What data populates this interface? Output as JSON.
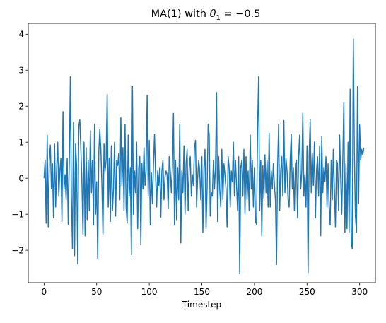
{
  "chart_data": {
    "type": "line",
    "title": "MA(1) with θ₁ = −0.5",
    "title_parts": {
      "prefix": "MA(1) with ",
      "symbol": "θ",
      "subscript": "1",
      "suffix": " = −0.5"
    },
    "xlabel": "Timestep",
    "ylabel": "",
    "xlim": [
      -15,
      315
    ],
    "ylim": [
      -2.9,
      4.3
    ],
    "x_ticks": [
      0,
      50,
      100,
      150,
      200,
      250,
      300
    ],
    "y_ticks": [
      -2,
      -1,
      0,
      1,
      2,
      3,
      4
    ],
    "y_tick_labels": [
      "−2",
      "−1",
      "0",
      "1",
      "2",
      "3",
      "4"
    ],
    "grid": false,
    "legend": "none",
    "series": [
      {
        "color": "#1f77b4",
        "x_start": 0,
        "x_step": 1,
        "values": [
          0.0,
          0.5,
          -1.25,
          1.2,
          -1.35,
          0.5,
          0.92,
          -0.3,
          0.4,
          -1.1,
          0.95,
          -0.8,
          0.3,
          1.0,
          -0.5,
          0.2,
          0.55,
          -1.2,
          1.85,
          -0.3,
          0.1,
          -0.6,
          0.55,
          -1.28,
          0.5,
          2.82,
          -0.5,
          -1.95,
          1.55,
          -2.15,
          0.95,
          0.3,
          -2.38,
          1.45,
          1.62,
          0.8,
          -0.1,
          -1.55,
          1.0,
          -1.6,
          0.85,
          -1.15,
          0.5,
          -0.9,
          1.32,
          -0.4,
          0.5,
          -1.3,
          1.5,
          -1.0,
          -0.1,
          -2.22,
          0.7,
          1.35,
          0.8,
          -0.2,
          -1.55,
          0.95,
          0.2,
          0.5,
          2.33,
          -0.8,
          0.55,
          -1.2,
          0.9,
          -0.9,
          -0.3,
          1.0,
          -1.05,
          0.5,
          0.35,
          0.7,
          -0.6,
          1.68,
          -0.2,
          0.85,
          -0.9,
          1.5,
          -0.8,
          -1.25,
          1.2,
          -0.5,
          0.3,
          -2.12,
          2.56,
          -1.0,
          0.2,
          -0.4,
          1.0,
          -1.4,
          0.3,
          0.6,
          -1.85,
          0.4,
          -0.3,
          0.85,
          -0.2,
          0.2,
          2.3,
          -0.5,
          1.05,
          -1.3,
          0.15,
          -0.7,
          0.4,
          1.22,
          0.1,
          -0.8,
          0.2,
          -0.2,
          0.3,
          -1.08,
          0.2,
          0.5,
          -0.6,
          0.05,
          0.2,
          0.1,
          -0.85,
          0.6,
          0.2,
          -0.4,
          0.3,
          1.8,
          -1.3,
          0.5,
          -1.15,
          0.3,
          -0.6,
          1.5,
          -1.8,
          0.2,
          -0.4,
          0.9,
          -1.0,
          0.4,
          0.8,
          -0.9,
          0.3,
          0.6,
          -0.5,
          0.1,
          -0.2,
          0.85,
          1.05,
          -0.8,
          0.0,
          0.5,
          0.2,
          -0.6,
          0.6,
          -1.5,
          0.3,
          0.8,
          -1.4,
          -0.3,
          1.5,
          1.2,
          -1.05,
          -0.4,
          -0.5,
          0.5,
          -0.3,
          0.3,
          2.38,
          -1.2,
          0.6,
          -0.3,
          -0.8,
          0.8,
          -0.6,
          0.4,
          0.1,
          -0.3,
          -1.35,
          0.6,
          0.3,
          -0.8,
          0.2,
          -0.1,
          1.0,
          -0.5,
          0.5,
          -0.2,
          -0.9,
          0.6,
          -2.65,
          0.3,
          0.5,
          -0.5,
          0.8,
          -1.0,
          0.6,
          -0.6,
          0.2,
          -0.9,
          1.2,
          -0.3,
          0.5,
          -0.8,
          0.3,
          -1.2,
          -1.28,
          1.4,
          2.82,
          -0.9,
          0.5,
          -1.6,
          0.35,
          -0.55,
          0.65,
          -0.4,
          0.5,
          -0.8,
          1.25,
          -0.8,
          0.2,
          -0.3,
          0.4,
          -0.2,
          -0.6,
          -2.4,
          0.3,
          1.5,
          -0.9,
          0.2,
          0.6,
          -0.5,
          1.6,
          -0.4,
          0.55,
          0.2,
          -0.6,
          -0.8,
          0.5,
          1.22,
          -0.3,
          0.3,
          -0.9,
          0.4,
          0.5,
          -1.1,
          0.6,
          1.2,
          -0.3,
          0.15,
          1.8,
          -0.5,
          0.1,
          -0.8,
          0.9,
          -2.62,
          0.6,
          1.62,
          -0.4,
          0.7,
          -0.2,
          1.0,
          -1.1,
          0.2,
          0.6,
          -0.5,
          0.9,
          -1.6,
          1.15,
          -0.4,
          0.3,
          -0.1,
          0.6,
          -0.8,
          0.4,
          -0.8,
          -1.3,
          0.5,
          -0.6,
          0.8,
          -0.3,
          -1.35,
          0.5,
          0.4,
          -0.9,
          1.2,
          0.0,
          -1.0,
          0.5,
          2.1,
          -1.5,
          0.4,
          -1.4,
          1.0,
          -1.5,
          2.47,
          -1.8,
          -1.95,
          3.87,
          0.7,
          -1.05,
          -1.5,
          2.55,
          -0.7,
          1.48,
          0.5,
          0.8,
          0.65,
          0.85
        ]
      }
    ]
  }
}
